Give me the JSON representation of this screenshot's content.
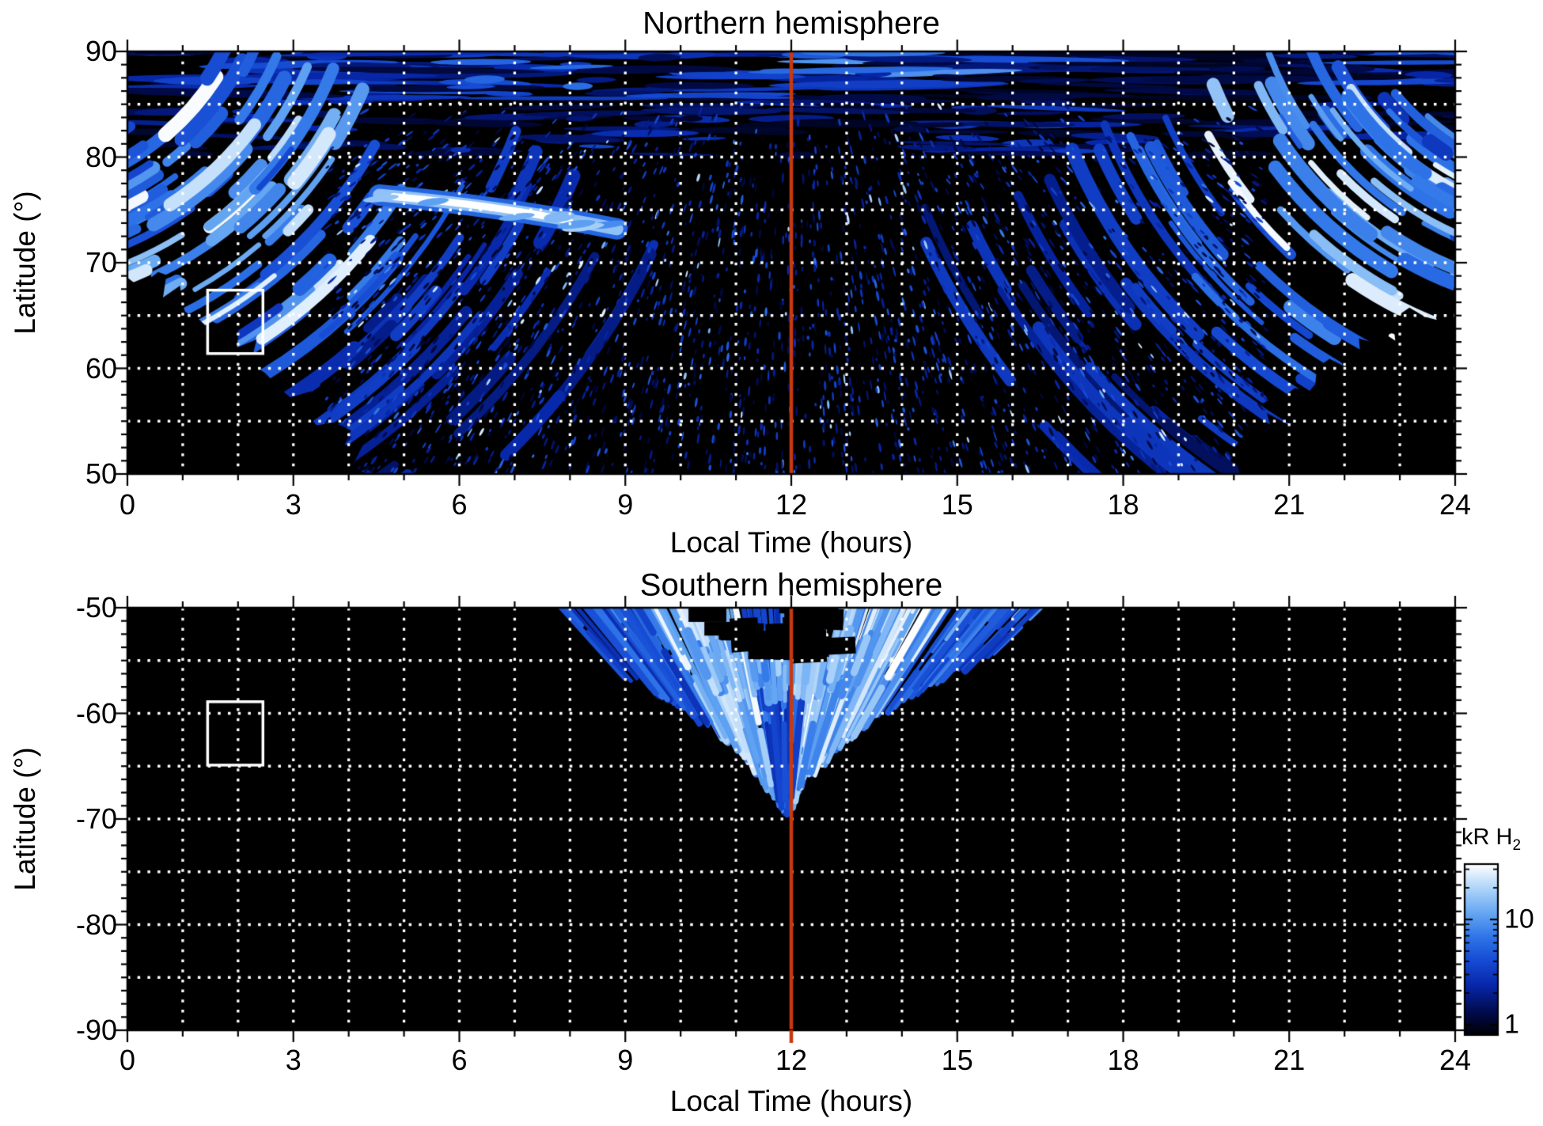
{
  "figure": {
    "background": "#ffffff",
    "text_color": "#000000"
  },
  "colorbar": {
    "label": "kR H",
    "label_sub": "2",
    "scale": "log",
    "tick_labels": [
      "10",
      "1"
    ],
    "tick_values": [
      10,
      1
    ],
    "minor_tick_values": [
      2,
      3,
      4,
      5,
      6,
      7,
      8,
      9,
      20,
      30
    ],
    "range": [
      0.8,
      34
    ],
    "ramp": [
      "#000004",
      "#010c52",
      "#0726a8",
      "#1549d2",
      "#2e74e8",
      "#66a7f2",
      "#aed4f9",
      "#ffffff"
    ]
  },
  "chart_data": [
    {
      "type": "heatmap",
      "hemisphere": "north",
      "title": "Northern hemisphere",
      "xlabel": "Local Time (hours)",
      "ylabel": "Latitude (°)",
      "xlim": [
        0,
        24
      ],
      "ylim": [
        50,
        90
      ],
      "xticks": [
        0,
        3,
        6,
        9,
        12,
        15,
        18,
        21,
        24
      ],
      "yticks": [
        90,
        80,
        70,
        60,
        50
      ],
      "x_minor_step": 1,
      "y_minor_step": 1.25,
      "grid": {
        "x_step": 1,
        "y_step": 5,
        "color": "#ffffff",
        "style": "dotted"
      },
      "meridian_line": {
        "x": 12,
        "color": "#c63a10"
      },
      "selection_box": {
        "lt": [
          1.45,
          2.45
        ],
        "lat": [
          61.4,
          67.4
        ],
        "color": "#ffffff"
      },
      "features": {
        "polar_band": {
          "lt": [
            0,
            24
          ],
          "lat": [
            85,
            90
          ],
          "bright_clusters_lt": [
            [
              5.0,
              8.6
            ],
            [
              9.6,
              12.7
            ]
          ]
        },
        "subpolar_band": {
          "lt": [
            0,
            24
          ],
          "lat": [
            80,
            85
          ]
        },
        "dawn_fan": {
          "lt": [
            0,
            5.5
          ],
          "lat": [
            50,
            82
          ],
          "bright_core_lt": [
            0.4,
            3.2
          ],
          "bright_core_lat": [
            70,
            79
          ]
        },
        "dusk_fan": {
          "lt": [
            18.5,
            24
          ],
          "lat": [
            50,
            82
          ],
          "bright_core_lt": [
            21,
            24
          ],
          "bright_core_lat": [
            70,
            80
          ]
        },
        "speckle_field": {
          "lt": [
            3.6,
            20.6
          ],
          "lat": [
            50,
            85
          ]
        },
        "bright_streak": {
          "lt": [
            4.55,
            8.85
          ],
          "lat": [
            76.4,
            73.2
          ]
        },
        "coverage_gap_dawn_lt_lat": [
          [
            0,
            69
          ],
          [
            0.8,
            66.5
          ],
          [
            1.6,
            64
          ],
          [
            2.3,
            61
          ],
          [
            3.0,
            57.5
          ],
          [
            3.7,
            53.5
          ],
          [
            4.35,
            50
          ]
        ],
        "coverage_gap_dusk_lt_lat": [
          [
            19.75,
            50
          ],
          [
            20.5,
            55
          ],
          [
            21.4,
            59
          ],
          [
            22.3,
            62.5
          ],
          [
            23.2,
            65.5
          ],
          [
            24,
            68
          ]
        ]
      }
    },
    {
      "type": "heatmap",
      "hemisphere": "south",
      "title": "Southern hemisphere",
      "xlabel": "Local Time (hours)",
      "ylabel": "Latitude (°)",
      "xlim": [
        0,
        24
      ],
      "ylim": [
        -90,
        -50
      ],
      "xticks": [
        0,
        3,
        6,
        9,
        12,
        15,
        18,
        21,
        24
      ],
      "yticks": [
        -50,
        -60,
        -70,
        -80,
        -90
      ],
      "x_minor_step": 1,
      "y_minor_step": 1.25,
      "grid": {
        "x_step": 1,
        "y_step": 5,
        "color": "#ffffff",
        "style": "dotted"
      },
      "meridian_line": {
        "x": 12,
        "color": "#c63a10"
      },
      "selection_box": {
        "lt": [
          1.45,
          2.45
        ],
        "lat": [
          -64.9,
          -58.9
        ],
        "color": "#ffffff"
      },
      "features": {
        "aurora_fan": {
          "origin_lt_lat": [
            11.9,
            -73.5
          ],
          "top_edge_lt": [
            8.0,
            16.3
          ],
          "deepest_lat": -68,
          "bright_sectors_lt": [
            [
              9.4,
              11.0
            ],
            [
              12.4,
              14.8
            ]
          ],
          "bright_band_lat": [
            -57,
            -54
          ],
          "dark_notch": {
            "lt": [
              11.05,
              12.75
            ],
            "lat": [
              -50,
              -54.6
            ]
          }
        }
      }
    }
  ]
}
